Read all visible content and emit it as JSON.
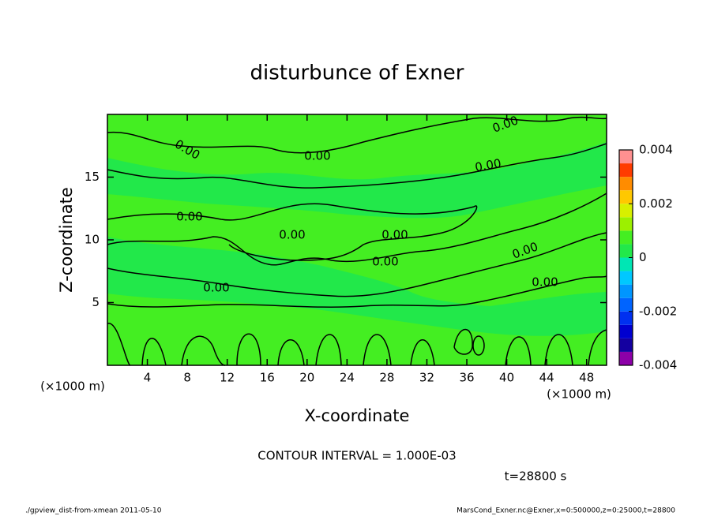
{
  "chart_data": {
    "type": "contour",
    "title": "disturbunce of Exner",
    "x_label": "X-coordinate",
    "y_label": "Z-coordinate",
    "x_unit_label": "(×1000 m)",
    "xlim": [
      0,
      50
    ],
    "xticks": [
      4,
      8,
      12,
      16,
      20,
      24,
      28,
      32,
      36,
      40,
      44,
      48
    ],
    "ylim": [
      0,
      20
    ],
    "yticks": [
      5,
      10,
      15
    ],
    "contour_labels": [
      "0.00",
      "0.00",
      "0.00",
      "0.00",
      "0.00",
      "0.00",
      "0.00",
      "0.00",
      "0.00",
      "0.00",
      "0.00"
    ],
    "colorbar": {
      "levels": [
        -0.004,
        -0.0035,
        -0.003,
        -0.0025,
        -0.002,
        -0.0015,
        -0.001,
        -0.0005,
        0,
        0.0005,
        0.001,
        0.0015,
        0.002,
        0.0025,
        0.003,
        0.0035,
        0.004
      ],
      "colors": [
        "#8c00a8",
        "#1400a0",
        "#0000d0",
        "#0030f0",
        "#0064ff",
        "#0096ff",
        "#00c8ff",
        "#00e6b4",
        "#22e84a",
        "#44ee22",
        "#9cf000",
        "#d8f000",
        "#ffc800",
        "#ff8c00",
        "#ff3c00",
        "#ff9090"
      ],
      "ticks": [
        -0.004,
        -0.002,
        0,
        0.002,
        0.004
      ]
    },
    "contour_interval": "CONTOUR INTERVAL = 1.000E-03",
    "time_label": "t=28800 s",
    "footer_left": "./gpview_dist-from-xmean  2011-05-10",
    "footer_right": "MarsCond_Exner.nc@Exner,x=0:500000,z=0:25000,t=28800"
  }
}
